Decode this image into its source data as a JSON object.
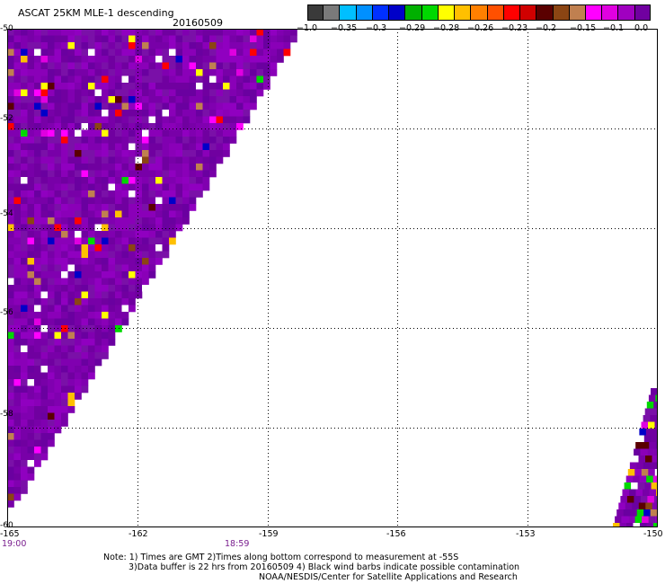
{
  "title": "ASCAT 25KM MLE-1 descending",
  "date": "20160509",
  "colorbar": {
    "colors": [
      "#3a3a3a",
      "#7a7a7a",
      "#00bfff",
      "#0090ff",
      "#0030ff",
      "#0000c8",
      "#00b000",
      "#00d800",
      "#ffff00",
      "#ffc000",
      "#ff8000",
      "#ff5000",
      "#ff0000",
      "#d00000",
      "#5a0000",
      "#8b4513",
      "#c08050",
      "#ff00ff",
      "#e000e0",
      "#a000c0",
      "#7000a0"
    ],
    "labels": [
      "−1.0",
      "−0.35",
      "−0.3",
      "−0.29",
      "−0.28",
      "−0.26",
      "−0.23",
      "−0.2",
      "−0.15",
      "−0.1",
      "0.0"
    ]
  },
  "axes": {
    "lon_ticks": [
      "-165",
      "-162",
      "-159",
      "-156",
      "-153",
      "-150"
    ],
    "lat_ticks": [
      "-50",
      "-52",
      "-54",
      "-56",
      "-58",
      "-60"
    ],
    "lon_range": [
      -165,
      -150
    ],
    "lat_range": [
      -60,
      -50
    ]
  },
  "times": [
    "19:00",
    "18:59"
  ],
  "notes": [
    "Note: 1) Times are GMT 2)Times along bottom correspond to measurement at -55S",
    "3)Data buffer is 22 hrs from 20160509 4) Black wind barbs indicate possible contamination",
    "NOAA/NESDIS/Center for Satellite Applications and Research"
  ]
}
